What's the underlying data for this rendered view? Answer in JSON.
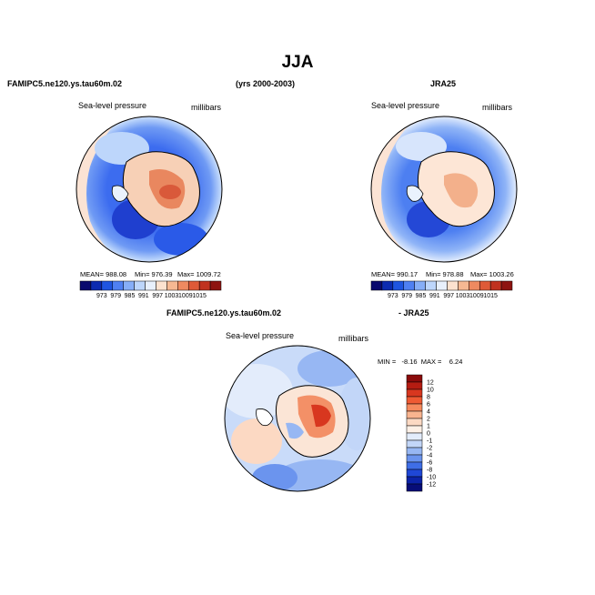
{
  "figure": {
    "title": "JJA",
    "years": "(yrs 2000-2003)"
  },
  "panel_left": {
    "header": "FAMIPC5.ne120.ys.tau60m.02",
    "field_label": "Sea-level pressure",
    "units": "millibars",
    "stats": {
      "mean": "MEAN= 988.08",
      "min": "Min= 976.39",
      "max": "Max= 1009.72"
    }
  },
  "panel_right": {
    "header": "JRA25",
    "field_label": "Sea-level pressure",
    "units": "millibars",
    "stats": {
      "mean": "MEAN= 990.17",
      "min": "Min= 978.88",
      "max": "Max= 1003.26"
    }
  },
  "panel_diff": {
    "header_left": "FAMIPC5.ne120.ys.tau60m.02",
    "header_right": "- JRA25",
    "field_label": "Sea-level pressure",
    "units": "millibars",
    "minmax": "MIN =   -8.16  MAX =    6.24"
  },
  "colorbar_abs": {
    "labels": [
      "973",
      "979",
      "985",
      "991",
      "997",
      "1003",
      "1009",
      "1015"
    ],
    "colors": [
      "#0a0a6e",
      "#0c2bb0",
      "#1f55e0",
      "#4f80f2",
      "#86aef7",
      "#bdd6fb",
      "#e8f0fc",
      "#fde2cf",
      "#f6b892",
      "#ee8a60",
      "#de5a38",
      "#c0321f",
      "#8e1410"
    ]
  },
  "colorbar_diff": {
    "labels": [
      "12",
      "10",
      "8",
      "6",
      "4",
      "2",
      "1",
      "0",
      "-1",
      "-2",
      "-4",
      "-6",
      "-8",
      "-10",
      "-12"
    ],
    "colors": [
      "#8a0b0b",
      "#b51c12",
      "#d8371f",
      "#ef5a33",
      "#f68a5e",
      "#f9b48f",
      "#fcd9c3",
      "#fdf0e6",
      "#e3ecfb",
      "#c2d6f8",
      "#97b7f3",
      "#6b94ee",
      "#3f6ee6",
      "#1f47d6",
      "#0c23a8",
      "#070d78"
    ]
  }
}
